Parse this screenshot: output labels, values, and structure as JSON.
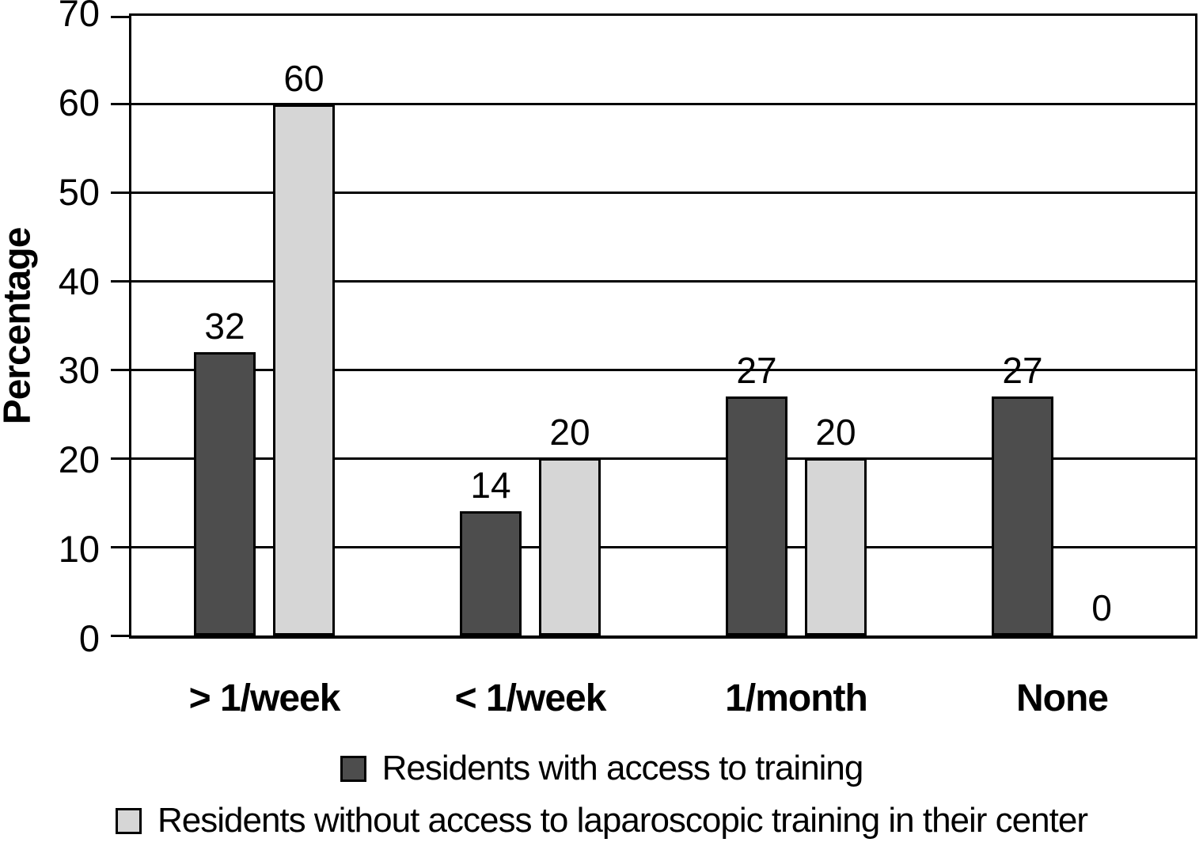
{
  "chart_data": {
    "type": "bar",
    "title": "",
    "ylabel": "Percentage",
    "xlabel": "",
    "categories": [
      "> 1/week",
      "< 1/week",
      "1/month",
      "None"
    ],
    "series": [
      {
        "name": "Residents with access to training",
        "color": "#4d4d4d",
        "values": [
          32,
          14,
          27,
          27
        ]
      },
      {
        "name": "Residents without access to laparoscopic training in their center",
        "color": "#d6d6d6",
        "values": [
          60,
          20,
          20,
          0
        ]
      }
    ],
    "ylim": [
      0,
      70
    ],
    "ytick_step": 10,
    "yticks": [
      0,
      10,
      20,
      30,
      40,
      50,
      60,
      70
    ],
    "grid": "horizontal",
    "gridline_color": "#000000",
    "bar_outline_color": "#000000",
    "bar_labels_shown": true,
    "legend_position": "bottom"
  }
}
